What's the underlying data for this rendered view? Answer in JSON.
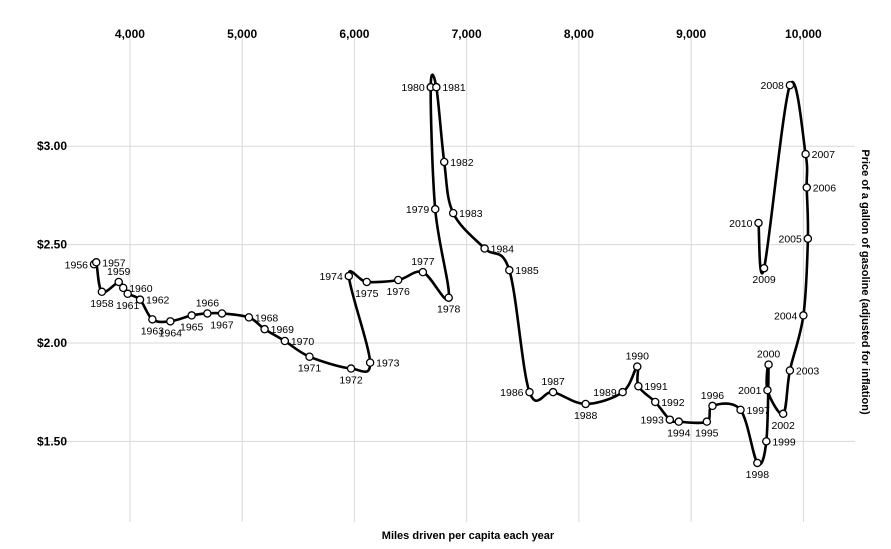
{
  "chart_data": {
    "type": "scatter",
    "connected": true,
    "xlabel": "Miles driven per capita each year",
    "ylabel": "Price of a gallon of gasoline (adjusted for inflation)",
    "x_ticks": [
      {
        "value": 4000,
        "label": "4,000"
      },
      {
        "value": 5000,
        "label": "5,000"
      },
      {
        "value": 6000,
        "label": "6,000"
      },
      {
        "value": 7000,
        "label": "7,000"
      },
      {
        "value": 8000,
        "label": "8,000"
      },
      {
        "value": 9000,
        "label": "9,000"
      },
      {
        "value": 10000,
        "label": "10,000"
      }
    ],
    "y_ticks": [
      {
        "value": 1.5,
        "label": "$1.50"
      },
      {
        "value": 2.0,
        "label": "$2.00"
      },
      {
        "value": 2.5,
        "label": "$2.50"
      },
      {
        "value": 3.0,
        "label": "$3.00"
      }
    ],
    "xlim": [
      3270,
      10460
    ],
    "ylim": [
      1.09,
      3.55
    ],
    "grid": true,
    "x_axis_position": "top",
    "y_axis_position": "left",
    "points": [
      {
        "year": "1956",
        "x": 3680,
        "y": 2.4,
        "label_side": "left"
      },
      {
        "year": "1957",
        "x": 3700,
        "y": 2.41,
        "label_side": "right"
      },
      {
        "year": "1958",
        "x": 3750,
        "y": 2.26,
        "label_side": "below"
      },
      {
        "year": "1959",
        "x": 3900,
        "y": 2.31,
        "label_side": "above"
      },
      {
        "year": "1960",
        "x": 3940,
        "y": 2.28,
        "label_side": "right"
      },
      {
        "year": "1961",
        "x": 3980,
        "y": 2.25,
        "label_side": "below"
      },
      {
        "year": "1962",
        "x": 4090,
        "y": 2.22,
        "label_side": "right"
      },
      {
        "year": "1963",
        "x": 4200,
        "y": 2.12,
        "label_side": "below"
      },
      {
        "year": "1964",
        "x": 4360,
        "y": 2.11,
        "label_side": "below"
      },
      {
        "year": "1965",
        "x": 4550,
        "y": 2.14,
        "label_side": "below"
      },
      {
        "year": "1966",
        "x": 4690,
        "y": 2.15,
        "label_side": "above"
      },
      {
        "year": "1967",
        "x": 4820,
        "y": 2.15,
        "label_side": "below"
      },
      {
        "year": "1968",
        "x": 5060,
        "y": 2.13,
        "label_side": "right"
      },
      {
        "year": "1969",
        "x": 5200,
        "y": 2.07,
        "label_side": "right"
      },
      {
        "year": "1970",
        "x": 5380,
        "y": 2.01,
        "label_side": "right"
      },
      {
        "year": "1971",
        "x": 5600,
        "y": 1.93,
        "label_side": "below"
      },
      {
        "year": "1972",
        "x": 5970,
        "y": 1.87,
        "label_side": "below"
      },
      {
        "year": "1973",
        "x": 6140,
        "y": 1.9,
        "label_side": "right"
      },
      {
        "year": "1974",
        "x": 5950,
        "y": 2.34,
        "label_side": "left"
      },
      {
        "year": "1975",
        "x": 6110,
        "y": 2.31,
        "label_side": "below"
      },
      {
        "year": "1976",
        "x": 6390,
        "y": 2.32,
        "label_side": "below"
      },
      {
        "year": "1977",
        "x": 6610,
        "y": 2.36,
        "label_side": "above"
      },
      {
        "year": "1978",
        "x": 6840,
        "y": 2.23,
        "label_side": "below"
      },
      {
        "year": "1979",
        "x": 6720,
        "y": 2.68,
        "label_side": "left"
      },
      {
        "year": "1980",
        "x": 6680,
        "y": 3.3,
        "label_side": "left"
      },
      {
        "year": "1981",
        "x": 6730,
        "y": 3.3,
        "label_side": "right"
      },
      {
        "year": "1982",
        "x": 6800,
        "y": 2.92,
        "label_side": "right"
      },
      {
        "year": "1983",
        "x": 6880,
        "y": 2.66,
        "label_side": "right"
      },
      {
        "year": "1984",
        "x": 7160,
        "y": 2.48,
        "label_side": "right"
      },
      {
        "year": "1985",
        "x": 7380,
        "y": 2.37,
        "label_side": "right"
      },
      {
        "year": "1986",
        "x": 7560,
        "y": 1.75,
        "label_side": "left"
      },
      {
        "year": "1987",
        "x": 7770,
        "y": 1.75,
        "label_side": "above"
      },
      {
        "year": "1988",
        "x": 8060,
        "y": 1.69,
        "label_side": "below"
      },
      {
        "year": "1989",
        "x": 8390,
        "y": 1.75,
        "label_side": "left"
      },
      {
        "year": "1990",
        "x": 8520,
        "y": 1.88,
        "label_side": "above"
      },
      {
        "year": "1991",
        "x": 8530,
        "y": 1.78,
        "label_side": "right"
      },
      {
        "year": "1992",
        "x": 8680,
        "y": 1.7,
        "label_side": "right"
      },
      {
        "year": "1993",
        "x": 8810,
        "y": 1.61,
        "label_side": "left"
      },
      {
        "year": "1994",
        "x": 8890,
        "y": 1.6,
        "label_side": "below"
      },
      {
        "year": "1995",
        "x": 9140,
        "y": 1.6,
        "label_side": "below"
      },
      {
        "year": "1996",
        "x": 9190,
        "y": 1.68,
        "label_side": "above"
      },
      {
        "year": "1997",
        "x": 9440,
        "y": 1.66,
        "label_side": "right"
      },
      {
        "year": "1998",
        "x": 9590,
        "y": 1.39,
        "label_side": "below"
      },
      {
        "year": "1999",
        "x": 9670,
        "y": 1.5,
        "label_side": "right"
      },
      {
        "year": "2000",
        "x": 9690,
        "y": 1.89,
        "label_side": "above"
      },
      {
        "year": "2001",
        "x": 9680,
        "y": 1.76,
        "label_side": "left"
      },
      {
        "year": "2002",
        "x": 9820,
        "y": 1.64,
        "label_side": "below"
      },
      {
        "year": "2003",
        "x": 9880,
        "y": 1.86,
        "label_side": "right"
      },
      {
        "year": "2004",
        "x": 10000,
        "y": 2.14,
        "label_side": "left"
      },
      {
        "year": "2005",
        "x": 10040,
        "y": 2.53,
        "label_side": "left"
      },
      {
        "year": "2006",
        "x": 10030,
        "y": 2.79,
        "label_side": "right"
      },
      {
        "year": "2007",
        "x": 10020,
        "y": 2.96,
        "label_side": "right"
      },
      {
        "year": "2008",
        "x": 9880,
        "y": 3.31,
        "label_side": "left"
      },
      {
        "year": "2009",
        "x": 9650,
        "y": 2.38,
        "label_side": "below"
      },
      {
        "year": "2010",
        "x": 9600,
        "y": 2.61,
        "label_side": "left"
      }
    ]
  }
}
